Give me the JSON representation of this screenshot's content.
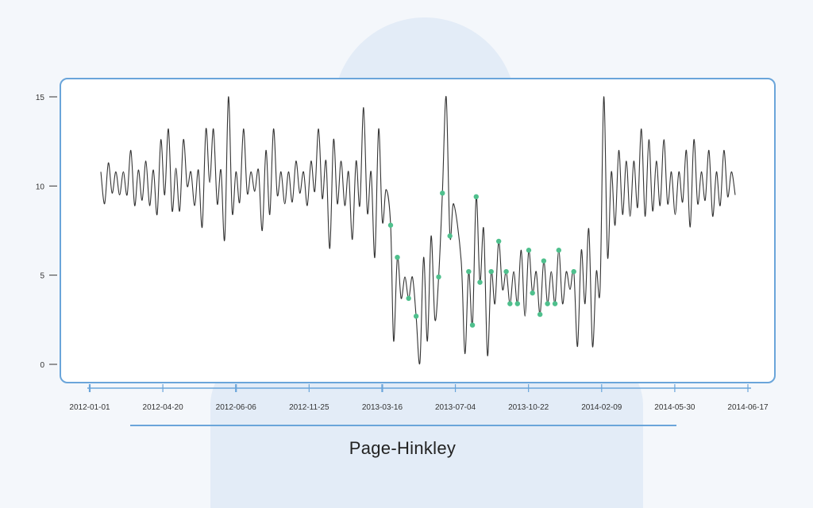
{
  "title": "Page-Hinkley",
  "chart_data": {
    "type": "line",
    "title": "Page-Hinkley",
    "xlabel": "",
    "ylabel": "",
    "ylim": [
      0,
      15
    ],
    "yticks": [
      0,
      5,
      10,
      15
    ],
    "xticks": [
      "2012-01-01",
      "2012-04-20",
      "2012-06-06",
      "2012-11-25",
      "2013-03-16",
      "2013-07-04",
      "2013-10-22",
      "2014-02-09",
      "2014-05-30",
      "2014-06-17"
    ],
    "grid": false,
    "legend": "none",
    "colors": {
      "line": "#333333",
      "markers": "#4fc08d",
      "frame": "#6aa5da",
      "axis": "#6aa5da"
    },
    "series": [
      {
        "values": [
          [
            0,
            10.8
          ],
          [
            0.5,
            9.0
          ],
          [
            1,
            11.3
          ],
          [
            1.5,
            9.6
          ],
          [
            2,
            10.8
          ],
          [
            2.5,
            9.5
          ],
          [
            3,
            10.8
          ],
          [
            3.5,
            9.5
          ],
          [
            4,
            12.0
          ],
          [
            4.5,
            8.9
          ],
          [
            5,
            10.9
          ],
          [
            5.5,
            9.2
          ],
          [
            6,
            11.4
          ],
          [
            6.5,
            8.9
          ],
          [
            7,
            10.9
          ],
          [
            7.5,
            8.4
          ],
          [
            8,
            12.6
          ],
          [
            8.5,
            9.5
          ],
          [
            9,
            13.2
          ],
          [
            9.5,
            8.6
          ],
          [
            10,
            11.0
          ],
          [
            10.5,
            8.6
          ],
          [
            11,
            12.6
          ],
          [
            11.5,
            10.0
          ],
          [
            12,
            10.8
          ],
          [
            12.5,
            8.9
          ],
          [
            13,
            10.9
          ],
          [
            13.5,
            7.7
          ],
          [
            14,
            13.2
          ],
          [
            14.5,
            10.2
          ],
          [
            15,
            13.2
          ],
          [
            15.5,
            9.0
          ],
          [
            16,
            10.9
          ],
          [
            16.5,
            7.0
          ],
          [
            17,
            15.0
          ],
          [
            17.5,
            8.5
          ],
          [
            18,
            10.8
          ],
          [
            18.5,
            9.1
          ],
          [
            19,
            13.2
          ],
          [
            19.5,
            9.6
          ],
          [
            20,
            10.8
          ],
          [
            20.5,
            9.7
          ],
          [
            21,
            10.9
          ],
          [
            21.5,
            7.5
          ],
          [
            22,
            12.0
          ],
          [
            22.5,
            8.4
          ],
          [
            23,
            13.2
          ],
          [
            23.5,
            9.5
          ],
          [
            24,
            10.8
          ],
          [
            24.5,
            9.0
          ],
          [
            25,
            10.8
          ],
          [
            25.5,
            9.1
          ],
          [
            26,
            11.4
          ],
          [
            26.5,
            9.6
          ],
          [
            27,
            10.8
          ],
          [
            27.5,
            8.9
          ],
          [
            28,
            11.4
          ],
          [
            28.5,
            9.7
          ],
          [
            29,
            13.2
          ],
          [
            29.5,
            9.3
          ],
          [
            30,
            11.4
          ],
          [
            30.5,
            6.5
          ],
          [
            31,
            12.6
          ],
          [
            31.5,
            9.0
          ],
          [
            32,
            11.4
          ],
          [
            32.5,
            8.9
          ],
          [
            33,
            10.8
          ],
          [
            33.5,
            7.0
          ],
          [
            34,
            11.4
          ],
          [
            34.5,
            8.9
          ],
          [
            35,
            14.4
          ],
          [
            35.5,
            8.5
          ],
          [
            36,
            10.8
          ],
          [
            36.5,
            6.0
          ],
          [
            37,
            13.2
          ],
          [
            37.5,
            8.0
          ],
          [
            38,
            9.8
          ],
          [
            38.6,
            7.8
          ],
          [
            39,
            1.3
          ],
          [
            39.5,
            6.0
          ],
          [
            40,
            3.7
          ],
          [
            40.5,
            4.9
          ],
          [
            41,
            3.7
          ],
          [
            41.5,
            4.9
          ],
          [
            42,
            2.7
          ],
          [
            42.5,
            0.1
          ],
          [
            43,
            6.0
          ],
          [
            43.5,
            1.3
          ],
          [
            44,
            7.2
          ],
          [
            44.5,
            2.5
          ],
          [
            45,
            4.9
          ],
          [
            45.5,
            9.6
          ],
          [
            46,
            15.0
          ],
          [
            46.5,
            7.2
          ],
          [
            47,
            9.0
          ],
          [
            48,
            5.8
          ],
          [
            48.5,
            0.6
          ],
          [
            49,
            5.2
          ],
          [
            49.5,
            2.2
          ],
          [
            50,
            9.4
          ],
          [
            50.5,
            4.6
          ],
          [
            51,
            7.6
          ],
          [
            51.5,
            0.5
          ],
          [
            52,
            5.2
          ],
          [
            52.5,
            3.4
          ],
          [
            53,
            6.9
          ],
          [
            53.5,
            4.2
          ],
          [
            54,
            5.2
          ],
          [
            54.5,
            3.4
          ],
          [
            55,
            5.2
          ],
          [
            55.5,
            3.4
          ],
          [
            56,
            6.4
          ],
          [
            56.5,
            2.7
          ],
          [
            57,
            6.4
          ],
          [
            57.5,
            4.0
          ],
          [
            58,
            5.2
          ],
          [
            58.5,
            2.8
          ],
          [
            59,
            5.8
          ],
          [
            59.5,
            3.4
          ],
          [
            60,
            5.2
          ],
          [
            60.5,
            3.4
          ],
          [
            61,
            6.4
          ],
          [
            61.5,
            3.4
          ],
          [
            62,
            5.2
          ],
          [
            62.5,
            4.2
          ],
          [
            63,
            5.2
          ],
          [
            63.5,
            1.0
          ],
          [
            64,
            6.4
          ],
          [
            64.5,
            3.4
          ],
          [
            65,
            7.6
          ],
          [
            65.5,
            1.0
          ],
          [
            66,
            5.2
          ],
          [
            66.5,
            4.2
          ],
          [
            67,
            15.0
          ],
          [
            67.5,
            6.0
          ],
          [
            68,
            10.8
          ],
          [
            68.5,
            7.8
          ],
          [
            69,
            12.0
          ],
          [
            69.5,
            8.4
          ],
          [
            70,
            11.4
          ],
          [
            70.5,
            8.3
          ],
          [
            71,
            11.4
          ],
          [
            71.5,
            8.8
          ],
          [
            72,
            13.2
          ],
          [
            72.5,
            8.3
          ],
          [
            73,
            12.6
          ],
          [
            73.5,
            8.6
          ],
          [
            74,
            11.4
          ],
          [
            74.5,
            8.9
          ],
          [
            75,
            12.6
          ],
          [
            75.5,
            9.0
          ],
          [
            76,
            10.8
          ],
          [
            76.5,
            8.4
          ],
          [
            77,
            10.8
          ],
          [
            77.5,
            9.1
          ],
          [
            78,
            12.0
          ],
          [
            78.5,
            7.7
          ],
          [
            79,
            12.6
          ],
          [
            79.5,
            9.0
          ],
          [
            80,
            10.8
          ],
          [
            80.5,
            9.2
          ],
          [
            81,
            12.0
          ],
          [
            81.5,
            8.3
          ],
          [
            82,
            10.8
          ],
          [
            82.5,
            8.9
          ],
          [
            83,
            12.0
          ],
          [
            83.5,
            9.4
          ],
          [
            84,
            10.8
          ],
          [
            84.5,
            9.5
          ]
        ]
      }
    ],
    "change_points": [
      [
        38.6,
        7.8
      ],
      [
        39.5,
        6.0
      ],
      [
        41,
        3.7
      ],
      [
        42,
        2.7
      ],
      [
        45,
        4.9
      ],
      [
        45.5,
        9.6
      ],
      [
        46.5,
        7.2
      ],
      [
        49,
        5.2
      ],
      [
        49.5,
        2.2
      ],
      [
        50,
        9.4
      ],
      [
        50.5,
        4.6
      ],
      [
        52,
        5.2
      ],
      [
        53,
        6.9
      ],
      [
        54,
        5.2
      ],
      [
        54.5,
        3.4
      ],
      [
        55.5,
        3.4
      ],
      [
        57,
        6.4
      ],
      [
        57.5,
        4.0
      ],
      [
        58.5,
        2.8
      ],
      [
        59,
        5.8
      ],
      [
        59.5,
        3.4
      ],
      [
        60.5,
        3.4
      ],
      [
        61,
        6.4
      ],
      [
        63,
        5.2
      ]
    ]
  }
}
